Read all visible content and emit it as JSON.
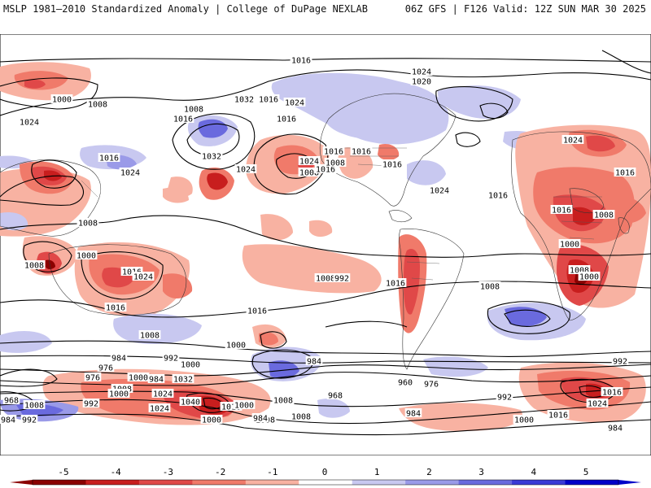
{
  "header": {
    "left": "MSLP 1981–2010 Standardized Anomaly | College of DuPage NEXLAB",
    "right": "06Z GFS | F126 Valid: 12Z SUN MAR 30 2025"
  },
  "colorbar": {
    "ticks": [
      "-5",
      "-4",
      "-3",
      "-2",
      "-1",
      "0",
      "1",
      "2",
      "3",
      "4",
      "5"
    ],
    "colors": [
      "#8b0000",
      "#c81e1e",
      "#e04848",
      "#f07a6a",
      "#f8b2a2",
      "#ffffff",
      "#c8c8f0",
      "#9a9ae8",
      "#6a6ade",
      "#3a3ad6",
      "#0000c8"
    ]
  },
  "map": {
    "labels": [
      {
        "text": "1016"
      },
      {
        "text": "1024"
      },
      {
        "text": "1020"
      },
      {
        "text": "1000"
      },
      {
        "text": "1008"
      },
      {
        "text": "1008"
      },
      {
        "text": "1032"
      },
      {
        "text": "1016"
      },
      {
        "text": "1024"
      },
      {
        "text": "1016"
      },
      {
        "text": "1032"
      },
      {
        "text": "1016"
      },
      {
        "text": "1024"
      },
      {
        "text": "1016"
      },
      {
        "text": "1024"
      },
      {
        "text": "1016"
      },
      {
        "text": "1016"
      },
      {
        "text": "1024"
      },
      {
        "text": "1008"
      },
      {
        "text": "1016"
      },
      {
        "text": "1016"
      },
      {
        "text": "1024"
      },
      {
        "text": "1008"
      },
      {
        "text": "1008"
      },
      {
        "text": "1008"
      },
      {
        "text": "1000"
      },
      {
        "text": "1016"
      },
      {
        "text": "1024"
      },
      {
        "text": "1016"
      },
      {
        "text": "1008"
      },
      {
        "text": "1024"
      },
      {
        "text": "1016"
      },
      {
        "text": "1016"
      },
      {
        "text": "1008"
      },
      {
        "text": "1016"
      },
      {
        "text": "1024"
      },
      {
        "text": "1016"
      },
      {
        "text": "1008"
      },
      {
        "text": "1016"
      },
      {
        "text": "1000"
      },
      {
        "text": "1008"
      },
      {
        "text": "1000"
      },
      {
        "text": "984"
      },
      {
        "text": "992"
      },
      {
        "text": "976"
      },
      {
        "text": "984"
      },
      {
        "text": "992"
      },
      {
        "text": "976"
      },
      {
        "text": "1000"
      },
      {
        "text": "1008"
      },
      {
        "text": "984"
      },
      {
        "text": "1024"
      },
      {
        "text": "1032"
      },
      {
        "text": "1040"
      },
      {
        "text": "1024"
      },
      {
        "text": "1016"
      },
      {
        "text": "1000"
      },
      {
        "text": "968"
      },
      {
        "text": "984"
      },
      {
        "text": "1008"
      },
      {
        "text": "1000"
      },
      {
        "text": "1008"
      },
      {
        "text": "1000"
      },
      {
        "text": "992"
      },
      {
        "text": "984"
      },
      {
        "text": "1008"
      },
      {
        "text": "1000"
      },
      {
        "text": "976"
      },
      {
        "text": "992"
      },
      {
        "text": "968"
      },
      {
        "text": "960"
      },
      {
        "text": "984"
      },
      {
        "text": "1000"
      },
      {
        "text": "1016"
      },
      {
        "text": "1024"
      },
      {
        "text": "1016"
      },
      {
        "text": "984"
      },
      {
        "text": "992"
      },
      {
        "text": "1008"
      },
      {
        "text": "1000"
      },
      {
        "text": "1008"
      },
      {
        "text": "992"
      }
    ]
  }
}
